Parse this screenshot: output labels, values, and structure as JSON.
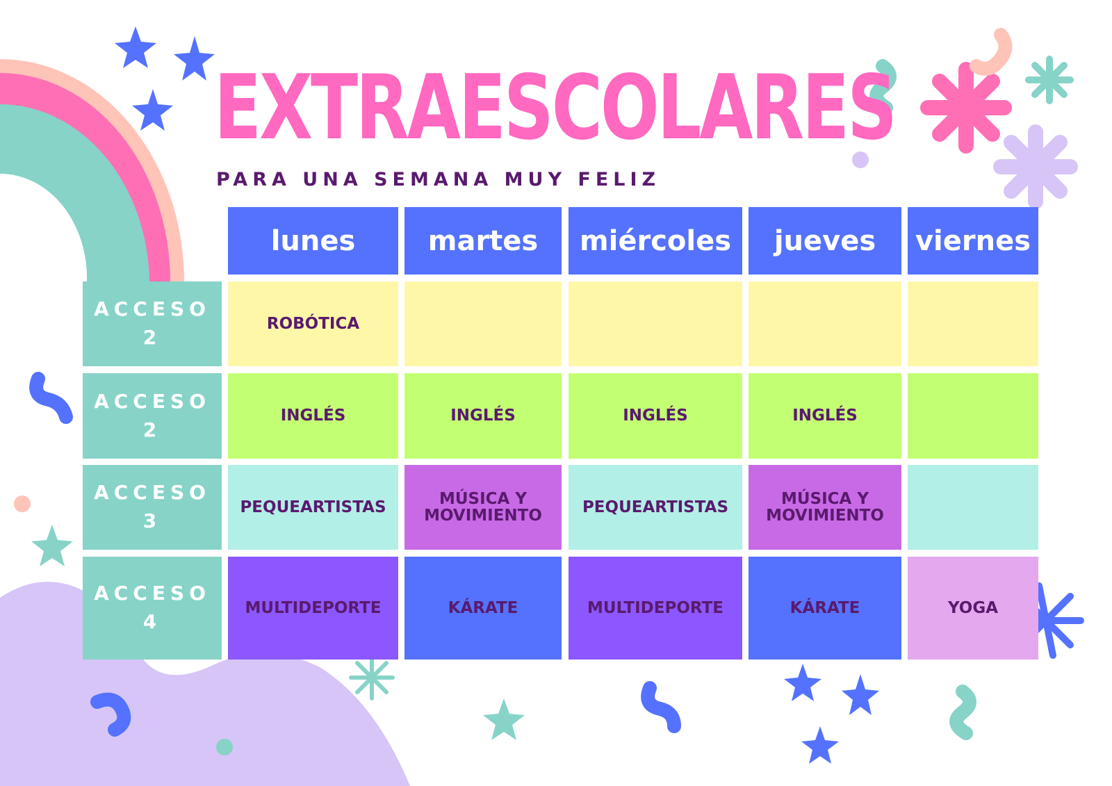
{
  "title": "EXTRAESCOLARES",
  "subtitle": "PARA UNA SEMANA MUY FELIZ",
  "colors": {
    "title": "#ff69c0",
    "header": "#5472fe",
    "row_label": "#87d3c8",
    "text_dark": "#5a1a6e",
    "yellow": "#fff7a8",
    "lime": "#c3ff73",
    "aqua": "#b2efe6",
    "orchid": "#c86ae6",
    "violet": "#8c57fe",
    "blue": "#5472fe",
    "lilac": "#e3a8ee"
  },
  "schedule": {
    "days": [
      "lunes",
      "martes",
      "miércoles",
      "jueves",
      "viernes"
    ],
    "rows": [
      {
        "label": "ACCESO",
        "number": "2",
        "cells": [
          {
            "text": "ROBÓTICA",
            "color": "#fff7a8"
          },
          {
            "text": "",
            "color": "#fff7a8"
          },
          {
            "text": "",
            "color": "#fff7a8"
          },
          {
            "text": "",
            "color": "#fff7a8"
          },
          {
            "text": "",
            "color": "#fff7a8"
          }
        ]
      },
      {
        "label": "ACCESO",
        "number": "2",
        "cells": [
          {
            "text": "INGLÉS",
            "color": "#c3ff73"
          },
          {
            "text": "INGLÉS",
            "color": "#c3ff73"
          },
          {
            "text": "INGLÉS",
            "color": "#c3ff73"
          },
          {
            "text": "INGLÉS",
            "color": "#c3ff73"
          },
          {
            "text": "",
            "color": "#c3ff73"
          }
        ]
      },
      {
        "label": "ACCESO",
        "number": "3",
        "cells": [
          {
            "text": "PEQUEARTISTAS",
            "color": "#b2efe6"
          },
          {
            "text": "MÚSICA Y MOVIMIENTO",
            "color": "#c86ae6"
          },
          {
            "text": "PEQUEARTISTAS",
            "color": "#b2efe6"
          },
          {
            "text": "MÚSICA Y MOVIMIENTO",
            "color": "#c86ae6"
          },
          {
            "text": "",
            "color": "#b2efe6"
          }
        ]
      },
      {
        "label": "ACCESO",
        "number": "4",
        "cells": [
          {
            "text": "MULTIDEPORTE",
            "color": "#8c57fe"
          },
          {
            "text": "KÁRATE",
            "color": "#5472fe"
          },
          {
            "text": "MULTIDEPORTE",
            "color": "#8c57fe"
          },
          {
            "text": "KÁRATE",
            "color": "#5472fe"
          },
          {
            "text": "YOGA",
            "color": "#e3a8ee"
          }
        ]
      }
    ]
  }
}
